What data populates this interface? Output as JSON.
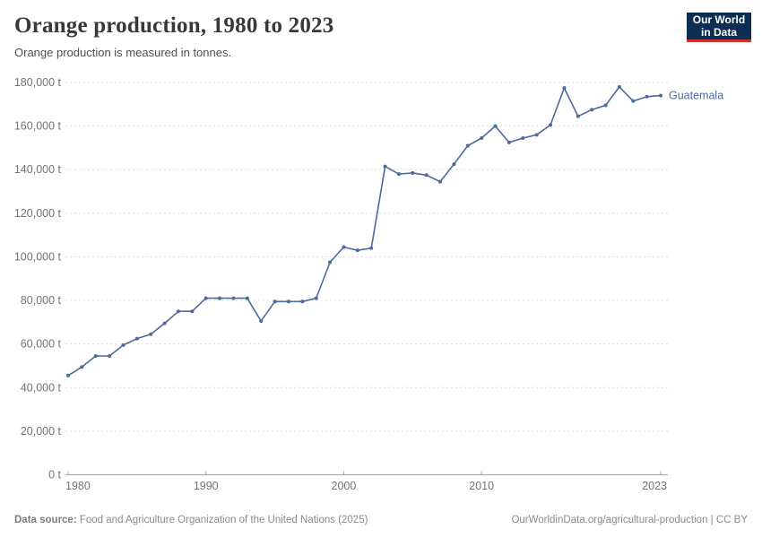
{
  "header": {
    "title": "Orange production, 1980 to 2023",
    "subtitle": "Orange production is measured in tonnes.",
    "logo": {
      "line1": "Our World",
      "line2": "in Data"
    }
  },
  "chart_data": {
    "type": "line",
    "title": "Orange production, 1980 to 2023",
    "ylabel": "",
    "xlabel": "",
    "unit": "t",
    "grid": "horizontal-dashed",
    "legend_position": "end-of-line",
    "xlim": [
      1980,
      2023
    ],
    "ylim": [
      0,
      180000
    ],
    "x_ticks": [
      1980,
      1990,
      2000,
      2010,
      2023
    ],
    "y_ticks": [
      0,
      20000,
      40000,
      60000,
      80000,
      100000,
      120000,
      140000,
      160000,
      180000
    ],
    "y_tick_suffix": " t",
    "x": [
      1980,
      1981,
      1982,
      1983,
      1984,
      1985,
      1986,
      1987,
      1988,
      1989,
      1990,
      1991,
      1992,
      1993,
      1994,
      1995,
      1996,
      1997,
      1998,
      1999,
      2000,
      2001,
      2002,
      2003,
      2004,
      2005,
      2006,
      2007,
      2008,
      2009,
      2010,
      2011,
      2012,
      2013,
      2014,
      2015,
      2016,
      2017,
      2018,
      2019,
      2020,
      2021,
      2022,
      2023
    ],
    "series": [
      {
        "name": "Guatemala",
        "color": "#4C6A9C",
        "values": [
          45500,
          49500,
          54500,
          54500,
          59500,
          62500,
          64500,
          69500,
          75000,
          75000,
          81000,
          81000,
          81000,
          81000,
          70500,
          79500,
          79500,
          79500,
          81000,
          97500,
          104500,
          103000,
          104000,
          141500,
          138000,
          138500,
          137500,
          134500,
          142500,
          151000,
          154500,
          160000,
          152500,
          154500,
          156000,
          160500,
          177500,
          164500,
          167500,
          169500,
          178000,
          171500,
          173500,
          174000
        ]
      }
    ]
  },
  "footer": {
    "source_label": "Data source:",
    "source_text": " Food and Agriculture Organization of the United Nations (2025)",
    "credit": "OurWorldinData.org/agricultural-production | CC BY"
  },
  "colors": {
    "line": "#4C6A9C",
    "gridline": "#dddddd",
    "axis_line": "#a3a3a3",
    "axis_text": "#737373",
    "title_text": "#383838",
    "logo_bg": "#0d2d52",
    "logo_red": "#cf3226"
  }
}
